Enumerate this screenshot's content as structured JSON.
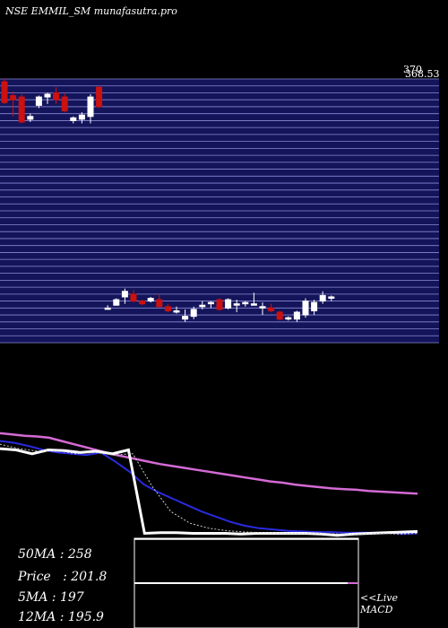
{
  "header": {
    "title": "NSE EMMIL_SM munafasutra.pro"
  },
  "price_panel": {
    "max_label": "370",
    "max_label_overlap": "368.53",
    "colors": {
      "bg": "#000000",
      "grid_bg": "#14145a",
      "grid_line": "#8a8ad6",
      "up": "#ffffff",
      "down": "#cc1111"
    }
  },
  "stats": {
    "ma50": "50MA : 258",
    "price": "Price   : 201.8",
    "ma5": "5MA : 197",
    "ma12": "12MA : 195.9"
  },
  "macd_link": {
    "line1": "<<Live",
    "line2": "MACD"
  },
  "chart_data": [
    {
      "type": "candlestick",
      "title": "",
      "ylim": [
        180,
        370
      ],
      "candles": [
        {
          "o": 368,
          "h": 370,
          "l": 352,
          "c": 353
        },
        {
          "o": 358,
          "h": 361,
          "l": 343,
          "c": 355
        },
        {
          "o": 357,
          "h": 359,
          "l": 338,
          "c": 339
        },
        {
          "o": 341,
          "h": 345,
          "l": 339,
          "c": 343
        },
        {
          "o": 351,
          "h": 358,
          "l": 349,
          "c": 357
        },
        {
          "o": 357,
          "h": 360,
          "l": 352,
          "c": 359
        },
        {
          "o": 360,
          "h": 364,
          "l": 352,
          "c": 355
        },
        {
          "o": 357,
          "h": 360,
          "l": 346,
          "c": 347
        },
        {
          "o": 340,
          "h": 343,
          "l": 338,
          "c": 342
        },
        {
          "o": 341,
          "h": 346,
          "l": 338,
          "c": 344
        },
        {
          "o": 343,
          "h": 359,
          "l": 338,
          "c": 357
        },
        {
          "o": 364,
          "h": 365,
          "l": 349,
          "c": 350
        },
        {
          "o": 205,
          "h": 207,
          "l": 204,
          "c": 205
        },
        {
          "o": 207,
          "h": 212,
          "l": 207,
          "c": 211
        },
        {
          "o": 213,
          "h": 219,
          "l": 208,
          "c": 217
        },
        {
          "o": 215,
          "h": 218,
          "l": 209,
          "c": 210
        },
        {
          "o": 210,
          "h": 211,
          "l": 207,
          "c": 208
        },
        {
          "o": 210,
          "h": 213,
          "l": 209,
          "c": 212
        },
        {
          "o": 211,
          "h": 215,
          "l": 205,
          "c": 206
        },
        {
          "o": 206,
          "h": 208,
          "l": 202,
          "c": 203
        },
        {
          "o": 203,
          "h": 206,
          "l": 201,
          "c": 203
        },
        {
          "o": 197,
          "h": 204,
          "l": 195,
          "c": 199
        },
        {
          "o": 199,
          "h": 206,
          "l": 197,
          "c": 204
        },
        {
          "o": 206,
          "h": 210,
          "l": 204,
          "c": 207
        },
        {
          "o": 209,
          "h": 210,
          "l": 205,
          "c": 209
        },
        {
          "o": 211,
          "h": 212,
          "l": 203,
          "c": 204
        },
        {
          "o": 205,
          "h": 212,
          "l": 204,
          "c": 211
        },
        {
          "o": 208,
          "h": 211,
          "l": 202,
          "c": 208
        },
        {
          "o": 208,
          "h": 210,
          "l": 206,
          "c": 209
        },
        {
          "o": 207,
          "h": 216,
          "l": 207,
          "c": 208
        },
        {
          "o": 206,
          "h": 209,
          "l": 200,
          "c": 206
        },
        {
          "o": 205,
          "h": 208,
          "l": 202,
          "c": 203
        },
        {
          "o": 202,
          "h": 203,
          "l": 196,
          "c": 197
        },
        {
          "o": 198,
          "h": 199,
          "l": 196,
          "c": 198
        },
        {
          "o": 197,
          "h": 203,
          "l": 195,
          "c": 202
        },
        {
          "o": 200,
          "h": 212,
          "l": 198,
          "c": 210
        },
        {
          "o": 203,
          "h": 211,
          "l": 200,
          "c": 209
        },
        {
          "o": 210,
          "h": 217,
          "l": 208,
          "c": 214
        },
        {
          "o": 212,
          "h": 214,
          "l": 210,
          "c": 213
        }
      ]
    },
    {
      "type": "line",
      "title": "",
      "ylim": [
        180,
        370
      ],
      "series": [
        {
          "color": "#d46ad4",
          "values": [
            352,
            350,
            348,
            347,
            345,
            340,
            335,
            330,
            325,
            320,
            316,
            312,
            308,
            304,
            301,
            298,
            295,
            292,
            289,
            286,
            283,
            280,
            277,
            275,
            272,
            270,
            268,
            266,
            265,
            264,
            262,
            261,
            260,
            259,
            258
          ]
        },
        {
          "color": "#2a2ae0",
          "values": [
            340,
            337,
            332,
            326,
            322,
            320,
            318,
            322,
            308,
            292,
            272,
            260,
            250,
            240,
            230,
            222,
            214,
            208,
            204,
            202,
            200,
            199,
            198,
            198,
            197,
            197,
            197,
            197,
            195,
            196
          ]
        },
        {
          "color": "#ffffff",
          "values": [
            328,
            326,
            320,
            326,
            325,
            322,
            324,
            320,
            326,
            196,
            197,
            197,
            196,
            196,
            196,
            195,
            196,
            196,
            196,
            196,
            195,
            193,
            195,
            196,
            197,
            198,
            199
          ]
        },
        {
          "color": "#cccccc",
          "values": [
            335,
            328,
            324,
            325,
            320,
            322,
            318,
            320,
            270,
            230,
            212,
            204,
            200,
            198,
            197,
            196,
            196,
            196,
            195,
            195,
            196,
            195,
            196
          ]
        }
      ]
    },
    {
      "type": "line",
      "title": "",
      "series": [
        {
          "color": "#ffffff",
          "values": [
            0,
            0
          ]
        },
        {
          "color": "#d46ad4",
          "values": [
            0,
            0
          ]
        }
      ]
    }
  ]
}
